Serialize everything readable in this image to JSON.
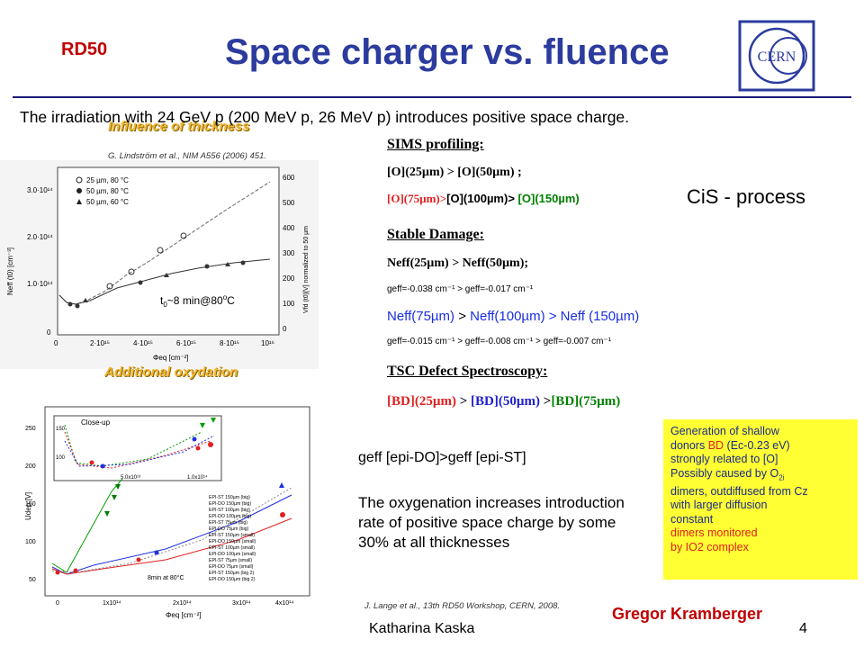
{
  "header": {
    "rd50": "RD50",
    "title": "Space charger vs. fluence",
    "logo_text": "CERN"
  },
  "intro": "The irradiation with 24 GeV p (200 MeV p, 26 MeV p) introduces positive space charge.",
  "left": {
    "influence": "Influence of thickness",
    "cite1": "G. Lindström et al., NIM A556 (2006) 451.",
    "plot1": {
      "legend": [
        "25 µm, 80 °C",
        "50 µm, 80 °C",
        "50 µm, 60 °C"
      ],
      "y_ticks": [
        "3.0·10¹⁴",
        "2.0·10¹⁴",
        "1.0·10¹⁴",
        "0"
      ],
      "y2_ticks": [
        "600",
        "500",
        "400",
        "300",
        "200",
        "100",
        "0"
      ],
      "x_ticks": [
        "0",
        "2·10¹⁵",
        "4·10¹⁵",
        "6·10¹⁵",
        "8·10¹⁵",
        "10¹⁶"
      ],
      "ylabel": "Neff (t0) [cm⁻³]",
      "y2label": "Vfd (t0)[V] normalized to 50 µm",
      "xlabel": "Φeq [cm⁻²]",
      "annot_main": "t",
      "annot_sub": "0",
      "annot_rest": "~8 min@80",
      "annot_deg": "o",
      "annot_unit": "C"
    },
    "addox": "Additional oxydation",
    "plot2": {
      "closeup": "Close-up",
      "closeup_y": [
        "150",
        "100"
      ],
      "closeup_x": [
        "5.0x10¹³",
        "1.0x10¹⁴"
      ],
      "y_ticks": [
        "250",
        "200",
        "150",
        "100",
        "50"
      ],
      "x_ticks": [
        "0",
        "1x10¹⁴",
        "2x10¹⁴",
        "3x10¹⁴",
        "4x10¹⁴"
      ],
      "ylabel": "Udep [V]",
      "xlabel": "Φeq [cm⁻²]",
      "annot": "8min at 80°C",
      "legend": [
        "EPI-ST 150µm (big)",
        "EPI-DO 150µm (big)",
        "EPI-ST 100µm (big)",
        "EPI-DO 100µm (big)",
        "EPI-ST 75µm (big)",
        "EPI-DO 75µm (big)",
        "EPI-ST 150µm (small)",
        "EPI-DO 150µm (small)",
        "EPI-ST 100µm (small)",
        "EPI-DO 100µm (small)",
        "EPI-ST 75µm (small)",
        "EPI-DO 75µm (small)",
        "EPI-ST 150µm (big 2)",
        "EPI-DO 150µm (big 2)"
      ]
    },
    "cite2": "J. Lange et al., 13th RD50 Workshop, CERN, 2008."
  },
  "right": {
    "sims_head": "SIMS profiling:",
    "sims_l1": "[O](25µm) > [O](50µm) ;",
    "sims_l2a": "[O](75µm)>",
    "sims_l2b": "[O](100µm)>",
    "sims_l2c": "[O](150µm)",
    "cis": "CiS - process",
    "stable_head": "Stable Damage:",
    "stable_l1": "Neff(25µm) > Neff(50µm);",
    "stable_l2": "geff=-0.038 cm⁻¹ > geff=-0.017 cm⁻¹",
    "stable_l3a": "Neff(75µm)",
    "stable_l3b": " > ",
    "stable_l3c": "Neff(100µm)",
    "stable_l3d": " > Neff (150µm)",
    "stable_l4": "geff=-0.015 cm⁻¹ > geff=-0.008 cm⁻¹ > geff=-0.007 cm⁻¹",
    "tsc_head": "TSC Defect Spectroscopy:",
    "tsc_a": "[BD](25µm)",
    "tsc_b": " > ",
    "tsc_c": "[BD](50µm)",
    "tsc_d": " >",
    "tsc_e": "[BD](75µm)",
    "geff2": "geff [epi-DO]>geff [epi-ST]",
    "oxy": "The oxygenation increases introduction rate of positive space charge by some 30% at all thicknesses",
    "box": {
      "l1": "Generation of shallow",
      "l2a": "donors ",
      "l2b": "BD",
      "l2c": " (Ec-0.23 eV)",
      "l3": "strongly related to [O]",
      "l4": "Possibly caused by O",
      "l4sub": "2i",
      "l5": "dimers, outdiffused from Cz",
      "l6": "with larger diffusion",
      "l7": "constant",
      "l8": "dimers monitored",
      "l9": "by IO2 complex"
    }
  },
  "footer": {
    "gregor": "Gregor Kramberger",
    "kaska": "Katharina Kaska",
    "page": "4"
  }
}
